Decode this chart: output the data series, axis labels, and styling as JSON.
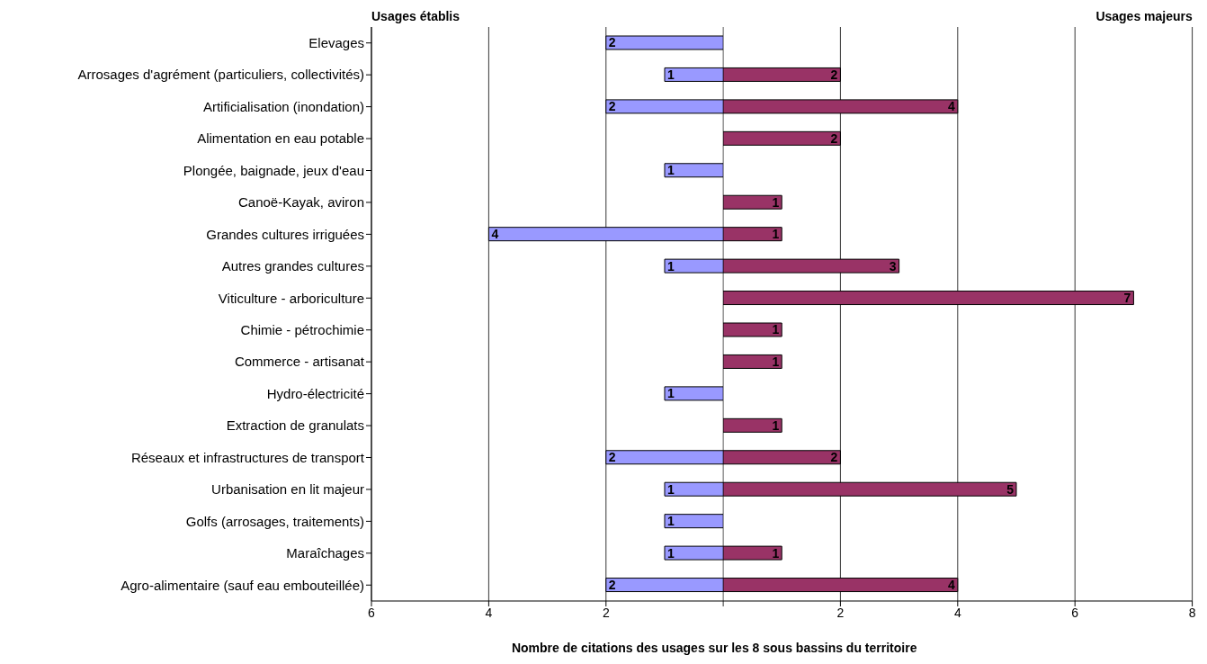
{
  "chart_data": [
    {
      "type": "bar",
      "orientation": "horizontal",
      "title": "Usages établis",
      "data_labels": true,
      "categories": [
        "Elevages",
        "Arrosages d'agrément (particuliers, collectivités)",
        "Artificialisation (inondation)",
        "Alimentation en eau potable",
        "Plongée, baignade, jeux d'eau",
        "Canoë-Kayak, aviron",
        "Grandes cultures irriguées",
        "Autres grandes cultures",
        "Viticulture - arboriculture",
        "Chimie - pétrochimie",
        "Commerce - artisanat",
        "Hydro-électricité",
        "Extraction de granulats",
        "Réseaux et infrastructures de transport",
        "Urbanisation en lit majeur",
        "Golfs (arrosages, traitements)",
        "Maraîchages",
        "Agro-alimentaire (sauf eau embouteillée)"
      ],
      "series": [
        {
          "color": "#9999ff",
          "values": [
            2,
            1,
            2,
            null,
            1,
            null,
            4,
            1,
            null,
            null,
            null,
            1,
            null,
            2,
            1,
            1,
            1,
            2
          ]
        }
      ],
      "xlim": [
        6,
        0
      ],
      "xticks": [
        6,
        4,
        2,
        {
          "value": 0,
          "label": null
        }
      ],
      "grid": "x",
      "legend": false
    },
    {
      "type": "bar",
      "orientation": "horizontal",
      "title": "Usages majeurs",
      "data_labels": true,
      "tick_labels": "x",
      "xlabel": "Nombre de citations des usages sur les  8 sous bassins du territoire",
      "categories": [
        null,
        null,
        null,
        null,
        null,
        null,
        null,
        null,
        null,
        null,
        null,
        null,
        null,
        null,
        null,
        null,
        null,
        null
      ],
      "series": [
        {
          "color": "#993366",
          "values": [
            null,
            2,
            4,
            2,
            null,
            1,
            1,
            3,
            7,
            1,
            1,
            null,
            1,
            2,
            5,
            null,
            1,
            4
          ]
        }
      ],
      "xlim": [
        0,
        8
      ],
      "xticks": [
        {
          "value": 0,
          "label": null
        },
        2,
        4,
        6,
        8
      ],
      "grid": "x",
      "legend": false
    }
  ]
}
